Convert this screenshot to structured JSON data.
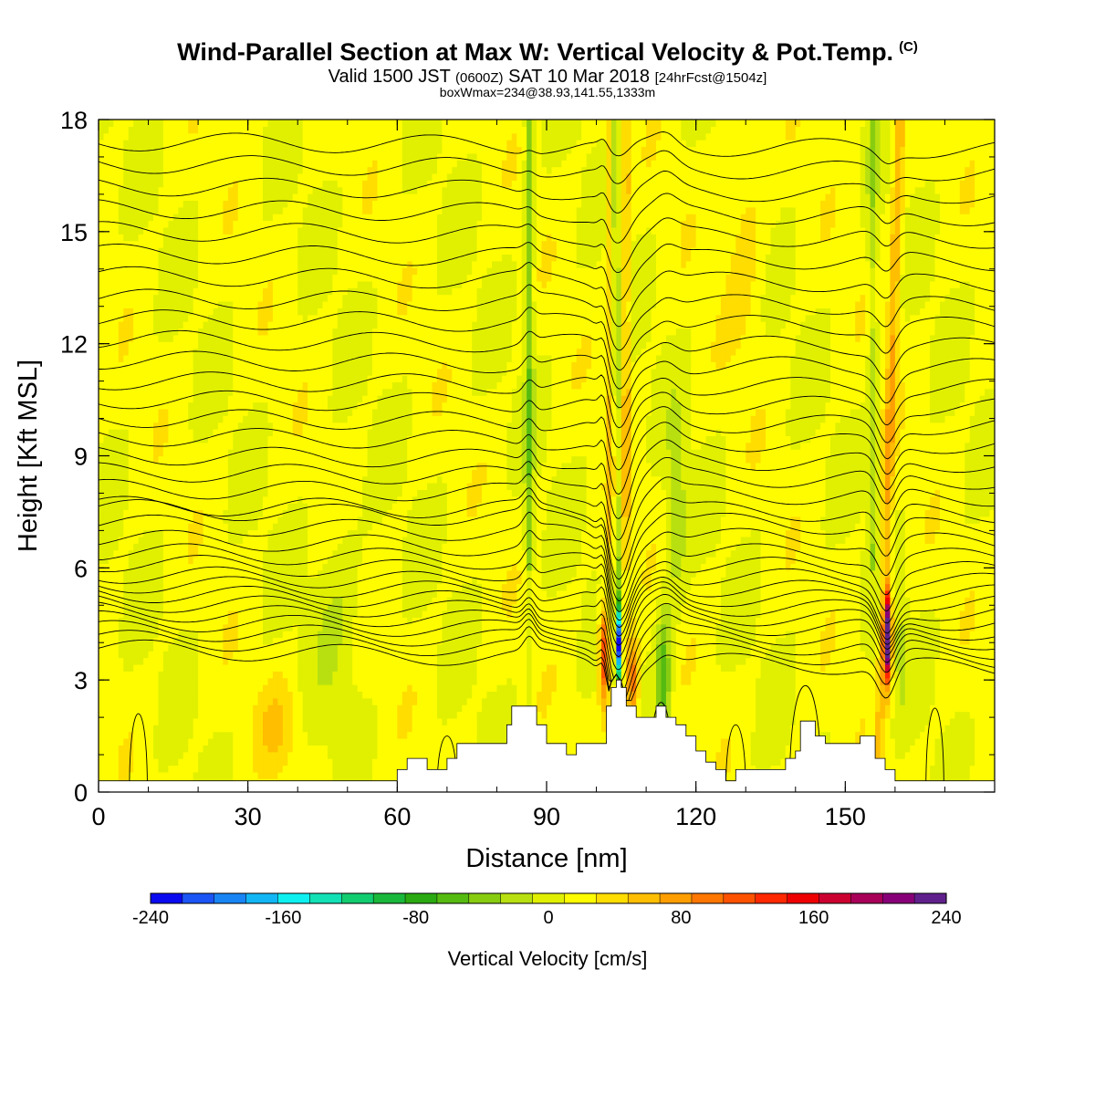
{
  "header": {
    "title": "Wind-Parallel Section at Max W: Vertical Velocity & Pot.Temp.",
    "copyright": "(C)",
    "valid_prefix": "Valid 1500 JST",
    "valid_utc": "(0600Z)",
    "valid_date": "SAT 10 Mar 2018",
    "forecast": "[24hrFcst@1504z]",
    "box_info": "boxWmax=234@38.93,141.55,1333m"
  },
  "chart_data": {
    "type": "heatmap",
    "title": "Wind-Parallel Section at Max W: Vertical Velocity & Pot.Temp.",
    "xlabel": "Distance [nm]",
    "ylabel": "Height [Kft MSL]",
    "xlim": [
      0,
      180
    ],
    "ylim": [
      0,
      18
    ],
    "x_ticks": [
      0,
      30,
      60,
      90,
      120,
      150
    ],
    "y_ticks": [
      0,
      3,
      6,
      9,
      12,
      15,
      18
    ],
    "fill_field": "Vertical Velocity [cm/s]",
    "contour_field": "Potential Temperature",
    "colorbar": {
      "label": "Vertical Velocity [cm/s]",
      "ticks": [
        -240,
        -160,
        -80,
        0,
        80,
        160,
        240
      ],
      "tick_labels": [
        "-240",
        "-160",
        "-80",
        "0",
        "80",
        "160",
        "240"
      ],
      "colors": [
        "#0a0af0",
        "#1b55f5",
        "#1985f5",
        "#12b6f4",
        "#0ef0f0",
        "#12e0b5",
        "#12cc70",
        "#1ab83a",
        "#2aaa10",
        "#55bb10",
        "#88cc10",
        "#b8e010",
        "#e0f000",
        "#fffc00",
        "#ffdd00",
        "#ffbe00",
        "#ff9e00",
        "#ff7700",
        "#ff5200",
        "#ff2800",
        "#ee0000",
        "#cc0030",
        "#a80058",
        "#880078",
        "#60208c"
      ]
    },
    "features": [
      {
        "name": "downdraft",
        "x": 104.5,
        "w_min": -234
      },
      {
        "name": "updraft",
        "x": 158.5,
        "w_max": 234
      },
      {
        "name": "updraft",
        "x": 101.5,
        "w_max": 130
      },
      {
        "name": "updraft",
        "x": 107,
        "w_max": 100
      }
    ],
    "terrain": {
      "x": [
        0,
        10,
        20,
        30,
        40,
        50,
        58,
        60,
        62,
        63,
        66,
        70,
        72,
        78,
        82,
        83,
        86,
        88,
        90,
        92,
        94,
        96,
        99,
        102,
        103,
        104,
        105,
        106,
        107,
        108,
        110,
        112,
        114,
        116,
        118,
        120,
        122,
        124,
        126,
        128,
        132,
        136,
        138,
        140,
        141,
        143,
        144,
        146,
        150,
        153,
        156,
        158,
        160,
        166,
        172,
        180
      ],
      "height_kft": [
        0.3,
        0.3,
        0.3,
        0.3,
        0.3,
        0.3,
        0.3,
        0.6,
        0.9,
        0.9,
        0.6,
        0.9,
        1.3,
        1.3,
        1.8,
        2.3,
        2.3,
        1.8,
        1.3,
        1.3,
        1.0,
        1.3,
        1.3,
        2.3,
        2.8,
        3.0,
        2.8,
        2.3,
        2.3,
        2.0,
        2.0,
        2.3,
        2.0,
        1.8,
        1.5,
        1.1,
        0.8,
        0.6,
        0.3,
        0.6,
        0.6,
        0.6,
        0.9,
        1.1,
        1.9,
        1.9,
        1.5,
        1.3,
        1.3,
        1.5,
        0.9,
        0.6,
        0.3,
        0.3,
        0.3,
        0.3
      ]
    },
    "theta_contours": {
      "count": 33,
      "base_height_kft": [
        3.3,
        3.55,
        3.8,
        4.05,
        4.3,
        4.55,
        4.8,
        5.05,
        5.3,
        5.6,
        5.9,
        6.25,
        6.65,
        7.05,
        7.45,
        7.9,
        8.35,
        8.8,
        9.3,
        9.8,
        10.3,
        10.8,
        11.35,
        11.9,
        12.45,
        13.0,
        13.6,
        14.2,
        14.8,
        15.4,
        16.0,
        16.6,
        17.2
      ]
    }
  }
}
